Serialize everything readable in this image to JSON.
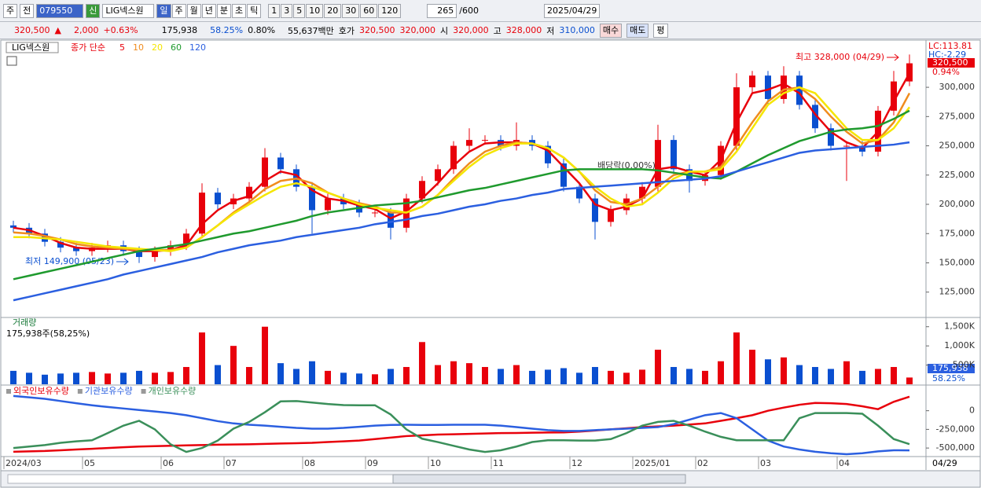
{
  "toolbar": {
    "period_button": "주",
    "all": "전",
    "code": "079550",
    "credit": "신",
    "name": "LIG넥스원",
    "intervals": [
      "일",
      "주",
      "월",
      "년",
      "분",
      "초",
      "틱"
    ],
    "minutes": [
      "1",
      "3",
      "5",
      "10",
      "20",
      "30",
      "60",
      "120"
    ],
    "count": "265",
    "count_max": "/600",
    "date": "2025/04/29"
  },
  "quote": {
    "price": "320,500",
    "arrow": "▲",
    "change": "2,000",
    "change_pct": "+0.63%",
    "volume": "175,938",
    "volume_ratio": "58.25%",
    "turnover": "0.80%",
    "amount": "55,637백만",
    "bid_label": "호가",
    "ask": "320,500",
    "bid": "320,000",
    "open_label": "시",
    "open": "320,000",
    "high_label": "고",
    "high": "328,000",
    "low_label": "저",
    "low": "310,000",
    "buy": "매수",
    "sell": "매도",
    "eval": "평"
  },
  "chart_data": [
    {
      "type": "candlestick",
      "stock_label": "LIG넥스원",
      "ma_label": "종가 단순",
      "ylim": [
        104000,
        339000
      ],
      "yticks": [
        {
          "value": 125000,
          "label": "125,000"
        },
        {
          "value": 150000,
          "label": "150,000"
        },
        {
          "value": 175000,
          "label": "175,000"
        },
        {
          "value": 200000,
          "label": "200,000"
        },
        {
          "value": 225000,
          "label": "225,000"
        },
        {
          "value": 250000,
          "label": "250,000"
        },
        {
          "value": 275000,
          "label": "275,000"
        },
        {
          "value": 300000,
          "label": "300,000"
        }
      ],
      "up_color": "#e8000b",
      "down_color": "#0a4fd0",
      "open": [
        182000,
        180000,
        175000,
        168000,
        163000,
        160000,
        163000,
        165000,
        160000,
        155000,
        160000,
        165000,
        175000,
        210000,
        200000,
        205000,
        215000,
        240000,
        230000,
        215000,
        195000,
        205000,
        200000,
        193000,
        193000,
        180000,
        205000,
        220000,
        230000,
        250000,
        255000,
        255000,
        250000,
        255000,
        250000,
        235000,
        215000,
        205000,
        185000,
        195000,
        205000,
        215000,
        255000,
        230000,
        220000,
        225000,
        250000,
        300000,
        310000,
        290000,
        310000,
        285000,
        265000,
        250000,
        250000,
        245000,
        280000,
        305000
      ],
      "high": [
        186000,
        184000,
        179000,
        172000,
        167000,
        167000,
        169000,
        169000,
        164000,
        164000,
        169000,
        179000,
        218000,
        214000,
        209000,
        219000,
        248000,
        244000,
        234000,
        219000,
        209000,
        209000,
        204000,
        197000,
        197000,
        209000,
        224000,
        234000,
        254000,
        265000,
        259000,
        259000,
        270000,
        259000,
        254000,
        239000,
        219000,
        209000,
        199000,
        209000,
        219000,
        268000,
        259000,
        234000,
        229000,
        254000,
        312000,
        314000,
        314000,
        318000,
        314000,
        289000,
        269000,
        254000,
        254000,
        284000,
        314000,
        328000
      ],
      "low": [
        176000,
        171000,
        164000,
        159000,
        156000,
        156000,
        159000,
        156000,
        149900,
        151000,
        156000,
        161000,
        171000,
        196000,
        196000,
        201000,
        211000,
        226000,
        211000,
        175000,
        191000,
        196000,
        189000,
        189000,
        170000,
        176000,
        201000,
        216000,
        226000,
        246000,
        251000,
        246000,
        246000,
        246000,
        231000,
        211000,
        201000,
        170000,
        181000,
        191000,
        201000,
        211000,
        226000,
        210000,
        216000,
        221000,
        246000,
        296000,
        286000,
        286000,
        281000,
        261000,
        246000,
        220000,
        241000,
        241000,
        276000,
        301000
      ],
      "close": [
        180000,
        175000,
        168000,
        163000,
        160000,
        163000,
        165000,
        160000,
        155000,
        160000,
        165000,
        175000,
        210000,
        200000,
        205000,
        215000,
        240000,
        230000,
        215000,
        195000,
        205000,
        200000,
        193000,
        193000,
        180000,
        205000,
        220000,
        230000,
        250000,
        255000,
        255000,
        250000,
        255000,
        250000,
        235000,
        215000,
        205000,
        185000,
        195000,
        205000,
        215000,
        255000,
        230000,
        220000,
        225000,
        250000,
        300000,
        310000,
        290000,
        310000,
        285000,
        265000,
        250000,
        250000,
        245000,
        280000,
        305000,
        320500
      ],
      "series": [
        {
          "name": "5",
          "color": "#e8000b",
          "values": [
            180000,
            178000,
            173000,
            167000,
            163000,
            162000,
            162000,
            162000,
            160000,
            160000,
            161000,
            165000,
            183000,
            195000,
            203000,
            207000,
            220000,
            228000,
            225000,
            212000,
            205000,
            203000,
            199000,
            196000,
            188000,
            194000,
            205000,
            218000,
            233000,
            245000,
            252000,
            253000,
            253000,
            252000,
            246000,
            232000,
            218000,
            200000,
            195000,
            198000,
            205000,
            230000,
            232000,
            228000,
            225000,
            238000,
            270000,
            295000,
            298000,
            303000,
            295000,
            277000,
            262000,
            253000,
            248000,
            262000,
            288000,
            312000
          ]
        },
        {
          "name": "10",
          "color": "#f08c1e",
          "values": [
            176000,
            175000,
            173000,
            170000,
            166000,
            164000,
            163000,
            162000,
            161000,
            161000,
            161000,
            163000,
            172000,
            182000,
            193000,
            202000,
            213000,
            220000,
            222000,
            218000,
            210000,
            205000,
            201000,
            198000,
            193000,
            193000,
            198000,
            208000,
            222000,
            235000,
            245000,
            250000,
            253000,
            252000,
            248000,
            240000,
            228000,
            212000,
            202000,
            200000,
            205000,
            215000,
            225000,
            228000,
            228000,
            232000,
            250000,
            270000,
            288000,
            298000,
            300000,
            290000,
            275000,
            262000,
            252000,
            255000,
            270000,
            295000
          ]
        },
        {
          "name": "20",
          "color": "#f5e600",
          "values": [
            172000,
            172000,
            171000,
            170000,
            168000,
            166000,
            164000,
            163000,
            162000,
            161000,
            160000,
            163000,
            172000,
            182000,
            192000,
            200000,
            208000,
            215000,
            218000,
            215000,
            210000,
            205000,
            200000,
            197000,
            195000,
            193000,
            198000,
            208000,
            220000,
            232000,
            242000,
            248000,
            252000,
            252000,
            248000,
            240000,
            228000,
            215000,
            205000,
            198000,
            200000,
            210000,
            222000,
            228000,
            228000,
            230000,
            245000,
            265000,
            285000,
            295000,
            300000,
            295000,
            280000,
            265000,
            255000,
            255000,
            265000,
            283000
          ]
        },
        {
          "name": "60",
          "color": "#1f9a2e",
          "values": [
            136000,
            139000,
            142000,
            145000,
            148000,
            151000,
            154000,
            157000,
            160000,
            162000,
            164000,
            166000,
            169000,
            172000,
            175000,
            177000,
            180000,
            183000,
            186000,
            190000,
            193000,
            195000,
            197000,
            199000,
            200000,
            201000,
            203000,
            206000,
            209000,
            212000,
            214000,
            217000,
            220000,
            223000,
            226000,
            229000,
            230000,
            230000,
            230000,
            230000,
            230000,
            229000,
            227000,
            225000,
            223000,
            222000,
            228000,
            235000,
            242000,
            248000,
            254000,
            258000,
            262000,
            264000,
            265000,
            267000,
            273000,
            280000
          ]
        },
        {
          "name": "120",
          "color": "#2b5fe0",
          "values": [
            118000,
            121000,
            124000,
            127000,
            130000,
            133000,
            136000,
            140000,
            143000,
            146000,
            149000,
            152000,
            155000,
            159000,
            162000,
            165000,
            167000,
            169000,
            172000,
            174000,
            176000,
            178000,
            180000,
            183000,
            185000,
            187000,
            190000,
            192000,
            195000,
            198000,
            200000,
            203000,
            205000,
            208000,
            210000,
            213000,
            214000,
            215000,
            216000,
            217000,
            218000,
            219000,
            220000,
            221000,
            222000,
            224000,
            228000,
            232000,
            236000,
            240000,
            244000,
            246000,
            247000,
            248000,
            249000,
            250000,
            251000,
            253000
          ]
        }
      ],
      "annotations": {
        "high": "최고 328,000 (04/29)",
        "low": "최저 149,900 (05/23)",
        "dividend": "배당락(0.00%)"
      },
      "side_labels": {
        "lc": "LC:113.81",
        "hc": "HC:-2.29",
        "current": "320,500",
        "pct": "0.94%"
      }
    },
    {
      "type": "bar",
      "title": "거래량",
      "subtitle": "175,938주(58,25%)",
      "ylim": [
        0,
        1720000
      ],
      "yticks": [
        {
          "value": 500000,
          "label": "500K"
        },
        {
          "value": 1000000,
          "label": "1,000K"
        },
        {
          "value": 1500000,
          "label": "1,500K"
        }
      ],
      "values": [
        350000,
        300000,
        250000,
        280000,
        300000,
        320000,
        280000,
        300000,
        350000,
        300000,
        320000,
        450000,
        1350000,
        500000,
        1000000,
        450000,
        1500000,
        550000,
        400000,
        600000,
        350000,
        300000,
        280000,
        260000,
        400000,
        450000,
        1100000,
        500000,
        600000,
        550000,
        450000,
        400000,
        500000,
        350000,
        380000,
        420000,
        300000,
        450000,
        350000,
        300000,
        380000,
        900000,
        450000,
        400000,
        350000,
        600000,
        1350000,
        900000,
        650000,
        700000,
        500000,
        450000,
        400000,
        600000,
        350000,
        400000,
        450000,
        175938
      ],
      "side_labels": {
        "current": "175,938",
        "pct": "58.25%"
      }
    },
    {
      "type": "line",
      "ylim": [
        -604000,
        323000
      ],
      "yticks": [
        0,
        {
          "value": -250000,
          "label": "-250,000"
        },
        {
          "value": -500000,
          "label": "-500,000"
        }
      ],
      "categories": [
        "2024/03",
        null,
        null,
        null,
        null,
        "05",
        null,
        null,
        null,
        null,
        "06",
        null,
        null,
        null,
        "07",
        null,
        null,
        null,
        null,
        "08",
        null,
        null,
        null,
        "09",
        null,
        null,
        null,
        "10",
        null,
        null,
        null,
        "11",
        null,
        null,
        null,
        null,
        "12",
        null,
        null,
        null,
        "2025/01",
        null,
        null,
        null,
        "02",
        null,
        null,
        null,
        "03",
        null,
        null,
        null,
        null,
        "04",
        null,
        null,
        null,
        null
      ],
      "last_date_label": "04/29",
      "series": [
        {
          "name": "외국인보유수량",
          "color": "#e8000b",
          "values": [
            -550000,
            -545000,
            -540000,
            -530000,
            -520000,
            -510000,
            -500000,
            -490000,
            -480000,
            -475000,
            -470000,
            -465000,
            -460000,
            -455000,
            -452000,
            -450000,
            -445000,
            -440000,
            -435000,
            -430000,
            -420000,
            -410000,
            -400000,
            -380000,
            -360000,
            -340000,
            -330000,
            -320000,
            -315000,
            -310000,
            -305000,
            -300000,
            -298000,
            -295000,
            -292000,
            -290000,
            -280000,
            -265000,
            -250000,
            -235000,
            -219000,
            -210000,
            -200000,
            -185000,
            -170000,
            -135000,
            -100000,
            -60000,
            0,
            42000,
            80000,
            104000,
            100000,
            90000,
            60000,
            21000,
            120000,
            188000
          ]
        },
        {
          "name": "기관보유수량",
          "color": "#2b5fe0",
          "values": [
            198000,
            180000,
            160000,
            130000,
            100000,
            73000,
            50000,
            30000,
            10000,
            -10000,
            -31000,
            -60000,
            -100000,
            -140000,
            -170000,
            -188000,
            -200000,
            -215000,
            -230000,
            -240000,
            -240000,
            -230000,
            -215000,
            -200000,
            -190000,
            -188000,
            -190000,
            -190000,
            -188000,
            -188000,
            -188000,
            -200000,
            -220000,
            -240000,
            -260000,
            -271000,
            -271000,
            -260000,
            -250000,
            -240000,
            -230000,
            -220000,
            -180000,
            -120000,
            -60000,
            -31000,
            -100000,
            -250000,
            -400000,
            -480000,
            -520000,
            -550000,
            -570000,
            -583000,
            -570000,
            -545000,
            -530000,
            -531000
          ]
        },
        {
          "name": "개인보유수량",
          "color": "#3a8f5a",
          "values": [
            -500000,
            -480000,
            -460000,
            -430000,
            -410000,
            -396000,
            -300000,
            -200000,
            -135000,
            -250000,
            -450000,
            -552000,
            -500000,
            -400000,
            -240000,
            -150000,
            -20000,
            125000,
            130000,
            110000,
            90000,
            75000,
            73000,
            73000,
            -50000,
            -250000,
            -375000,
            -420000,
            -470000,
            -520000,
            -552000,
            -530000,
            -480000,
            -420000,
            -396000,
            -396000,
            -400000,
            -400000,
            -380000,
            -300000,
            -200000,
            -150000,
            -135000,
            -200000,
            -280000,
            -350000,
            -396000,
            -396000,
            -396000,
            -396000,
            -100000,
            -31000,
            -31000,
            -31000,
            -40000,
            -200000,
            -380000,
            -448000
          ]
        }
      ]
    }
  ]
}
